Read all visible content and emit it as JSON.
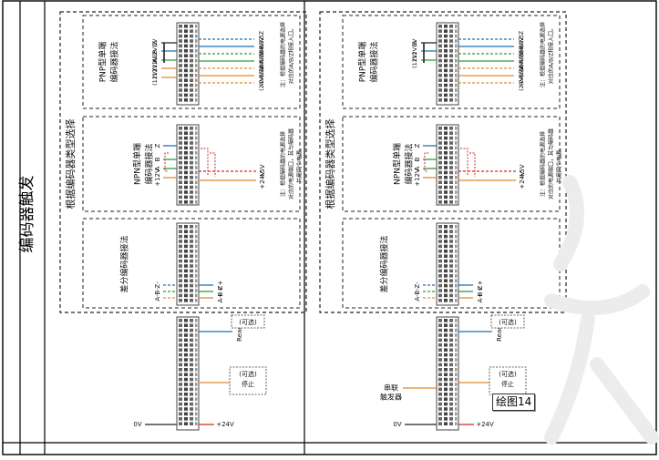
{
  "row_header": "编码器触发",
  "panels": [
    {
      "section_title": "根据编码器类型选择",
      "pnp": {
        "title_line1": "PNP型单端",
        "title_line2": "编码器接法",
        "left_labels": [
          "0V",
          "(12V)Z",
          "(12V)B",
          "(12V)A",
          "(12V)"
        ],
        "right_labels": [
          "(5V)Z",
          "(24V)Z",
          "(5V)B",
          "(24V)B",
          "(5V)A",
          "(24V)A",
          "(24V)"
        ],
        "note_line1": "注：根据编码器的电源选择",
        "note_line2": "对应的A/B/Z相接入口。"
      },
      "npn": {
        "title_line1": "NPN型单端",
        "title_line2": "编码器接法",
        "left_labels": [
          "Z",
          "B",
          "A",
          "+12V"
        ],
        "right_labels": [
          "+5V",
          "+24V"
        ],
        "note_line1": "注：根据编码器的电源选择",
        "note_line2": "对应的电源端口，其与编码器",
        "note_line3": "共用同个电源。"
      },
      "diff": {
        "title": "差分编码器接法",
        "left_labels": [
          "Z-",
          "B-",
          "A-"
        ],
        "right_labels": [
          "Z+",
          "B+",
          "A+"
        ]
      },
      "ready_label": "Ready",
      "ready_note": "(可选)",
      "stop_label": "停止",
      "stop_note": "(可选)",
      "stop_side_labels": [],
      "power_left": "0V",
      "power_right": "+24V"
    },
    {
      "section_title": "根据编码器类型选择",
      "pnp": {
        "title_line1": "PNP型单端",
        "title_line2": "编码器接法",
        "left_labels": [
          "0V",
          "(12V)B",
          "(12V)"
        ],
        "right_labels": [
          "(5V)Z",
          "(24V)Z",
          "(5V)B",
          "(24V)B",
          "(5V)A",
          "(24V)A",
          "(24V)"
        ],
        "note_line1": "注：根据编码器的电源选择",
        "note_line2": "对应的A/B/Z相接入口。"
      },
      "npn": {
        "title_line1": "NPN型单端",
        "title_line2": "编码器接法",
        "left_labels": [
          "Z",
          "B",
          "A",
          "+12V"
        ],
        "right_labels": [
          "+5V",
          "+24V"
        ],
        "note_line1": "注：根据编码器的电源选择",
        "note_line2": "对应的电源端口，其与编码器",
        "note_line3": "共用同个电源。"
      },
      "diff": {
        "title": "差分编码器接法",
        "left_labels": [
          "Z-",
          "B-",
          "A-"
        ],
        "right_labels": [
          "Z+",
          "B+",
          "A+"
        ]
      },
      "ready_label": "Ready",
      "ready_note": "(可选)",
      "stop_label": "停止",
      "stop_note": "(可选)",
      "stop_side_labels": [
        "串联",
        "触发器"
      ],
      "power_left": "0V",
      "power_right": "+24V"
    }
  ],
  "drawing_label": "绘图14",
  "colors": {
    "blue": "#1f6fb5",
    "green": "#2e9a3c",
    "orange": "#e08a2a",
    "red": "#d62828",
    "dark": "#222222",
    "terminal": "#444444"
  }
}
